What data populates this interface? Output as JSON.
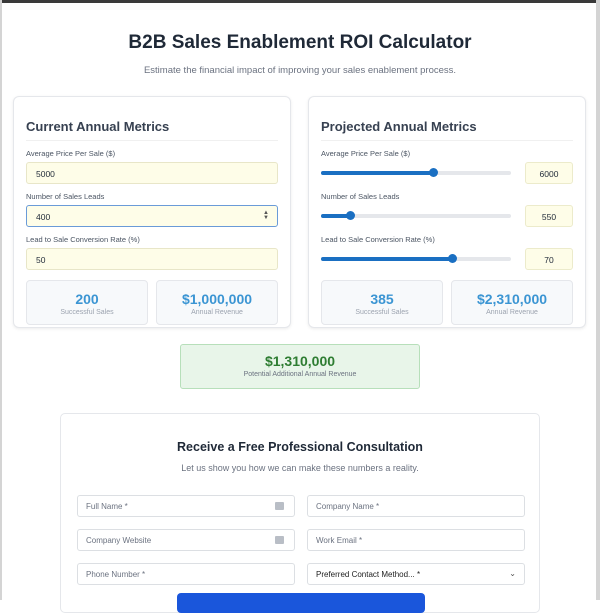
{
  "header": {
    "title": "B2B Sales Enablement ROI Calculator",
    "subtitle": "Estimate the financial impact of improving your sales enablement process."
  },
  "current": {
    "title": "Current Annual Metrics",
    "price_label": "Average Price Per Sale ($)",
    "price": "5000",
    "leads_label": "Number of Sales Leads",
    "leads": "400",
    "rate_label": "Lead to Sale Conversion Rate (%)",
    "rate": "50",
    "sales": "200",
    "sales_label": "Successful Sales",
    "revenue": "$1,000,000",
    "revenue_label": "Annual Revenue"
  },
  "projected": {
    "title": "Projected Annual Metrics",
    "price_label": "Average Price Per Sale ($)",
    "price": "6000",
    "price_fill": 0.59,
    "leads_label": "Number of Sales Leads",
    "leads": "550",
    "leads_fill": 0.15,
    "rate_label": "Lead to Sale Conversion Rate (%)",
    "rate": "70",
    "rate_fill": 0.69,
    "sales": "385",
    "sales_label": "Successful Sales",
    "revenue": "$2,310,000",
    "revenue_label": "Annual Revenue"
  },
  "result": {
    "value": "$1,310,000",
    "label": "Potential Additional Annual Revenue"
  },
  "form": {
    "title": "Receive a Free Professional Consultation",
    "subtitle": "Let us show you how we can make these numbers a reality.",
    "full_name": "Full Name *",
    "company_name": "Company Name *",
    "website": "Company Website",
    "email": "Work Email *",
    "phone": "Phone Number *",
    "contact_method": "Preferred Contact Method... *"
  }
}
